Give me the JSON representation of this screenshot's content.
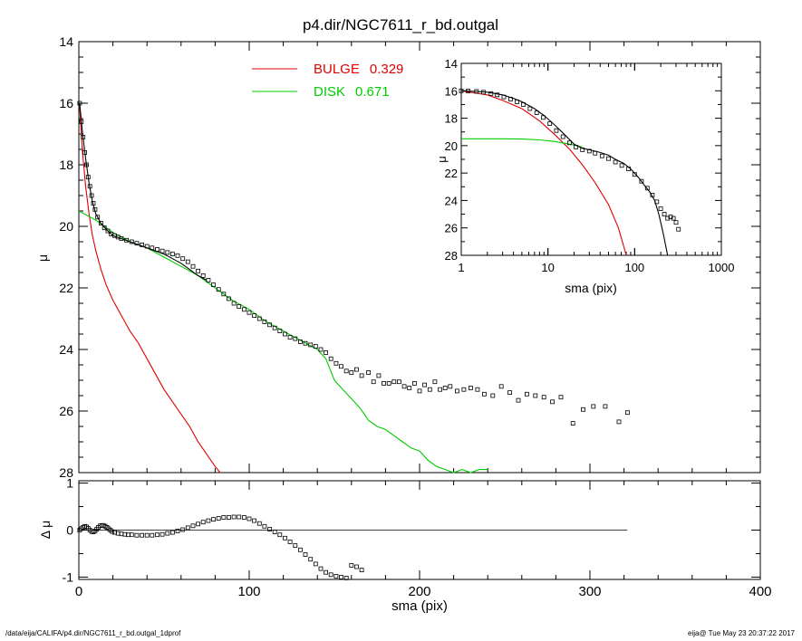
{
  "title": "p4.dir/NGC7611_r_bd.outgal",
  "footer": {
    "path": "/data/eija/CALIFA/p4.dir/NGC7611_r_bd.outgal_1dprof",
    "stamp": "eija@  Tue May 23 20:37:22 2017"
  },
  "colors": {
    "bulge": "#e00000",
    "disk": "#00cc00",
    "data": "#000000"
  },
  "chart_data": [
    {
      "id": "main",
      "type": "line",
      "xlabel": "",
      "ylabel": "μ",
      "xlim": [
        0,
        400
      ],
      "ylim": [
        28,
        14
      ],
      "yticks": [
        14,
        16,
        18,
        20,
        22,
        24,
        26,
        28
      ],
      "xticks": [
        0,
        100,
        200,
        300,
        400
      ],
      "legend": [
        {
          "label": "BULGE",
          "value": "0.329",
          "color": "#e00000"
        },
        {
          "label": "DISK",
          "value": "0.671",
          "color": "#00cc00"
        }
      ],
      "series": [
        {
          "role": "bulge",
          "style": "line",
          "color": "#e00000",
          "x": [
            0.5,
            2,
            4,
            6,
            8,
            10,
            13,
            16,
            20,
            25,
            30,
            35,
            40,
            45,
            50,
            55,
            60,
            65,
            70,
            75,
            80,
            83
          ],
          "y": [
            16.1,
            17.5,
            18.7,
            19.6,
            20.3,
            20.8,
            21.4,
            21.9,
            22.4,
            22.9,
            23.4,
            23.8,
            24.3,
            24.8,
            25.3,
            25.7,
            26.1,
            26.5,
            27.0,
            27.4,
            27.8,
            28.0
          ]
        },
        {
          "role": "disk",
          "style": "line",
          "color": "#00cc00",
          "x": [
            0,
            10,
            20,
            30,
            40,
            50,
            60,
            70,
            80,
            90,
            100,
            110,
            120,
            130,
            140,
            145,
            150,
            155,
            160,
            165,
            170,
            175,
            180,
            185,
            190,
            195,
            200,
            205,
            210,
            215,
            220,
            225,
            230,
            235,
            240
          ],
          "y": [
            19.5,
            19.8,
            20.2,
            20.5,
            20.7,
            21.0,
            21.3,
            21.6,
            22.0,
            22.4,
            22.7,
            23.1,
            23.4,
            23.7,
            24.0,
            24.3,
            25.0,
            25.3,
            25.6,
            25.9,
            26.3,
            26.5,
            26.6,
            26.8,
            27.0,
            27.2,
            27.3,
            27.6,
            27.8,
            27.9,
            28.0,
            27.9,
            28.0,
            27.9,
            27.9
          ]
        },
        {
          "role": "total",
          "style": "line",
          "color": "#000000",
          "x": [
            0.5,
            2,
            4,
            6,
            8,
            10,
            13,
            16,
            20,
            25,
            30,
            35,
            40,
            45,
            50,
            55,
            60,
            65,
            70,
            75
          ],
          "y": [
            16.0,
            16.9,
            17.8,
            18.6,
            19.2,
            19.6,
            19.9,
            20.1,
            20.3,
            20.4,
            20.5,
            20.6,
            20.7,
            20.8,
            20.9,
            21.05,
            21.2,
            21.4,
            21.6,
            21.75
          ]
        },
        {
          "role": "observed",
          "style": "markers",
          "color": "#000000",
          "x": [
            0.5,
            1.5,
            2.5,
            3.5,
            4.5,
            5.5,
            6.5,
            7.5,
            8.5,
            9.5,
            11,
            13,
            15,
            17,
            19,
            21,
            23,
            25,
            28,
            31,
            34,
            37,
            40,
            43,
            46,
            49,
            52,
            55,
            58,
            61,
            64,
            67,
            70,
            73,
            76,
            79,
            82,
            85,
            88,
            91,
            94,
            97,
            100,
            103,
            106,
            109,
            112,
            115,
            118,
            121,
            124,
            127,
            130,
            133,
            136,
            139,
            142,
            145,
            148,
            151,
            154,
            157,
            160,
            163,
            166,
            170,
            173,
            176,
            179,
            182,
            185,
            188,
            191,
            194,
            197,
            200,
            203,
            206,
            209,
            212,
            215,
            218,
            222,
            226,
            230,
            234,
            238,
            243,
            248,
            253,
            258,
            263,
            268,
            273,
            278,
            283,
            290,
            296,
            302,
            309,
            317,
            322
          ],
          "y": [
            16.0,
            16.6,
            17.1,
            17.6,
            18.0,
            18.4,
            18.7,
            19.0,
            19.25,
            19.45,
            19.7,
            19.9,
            20.05,
            20.15,
            20.25,
            20.3,
            20.35,
            20.4,
            20.45,
            20.5,
            20.55,
            20.6,
            20.65,
            20.7,
            20.75,
            20.8,
            20.85,
            20.9,
            20.95,
            21.05,
            21.15,
            21.3,
            21.45,
            21.6,
            21.75,
            21.9,
            22.05,
            22.2,
            22.35,
            22.5,
            22.6,
            22.7,
            22.8,
            22.9,
            23.0,
            23.1,
            23.2,
            23.3,
            23.4,
            23.5,
            23.6,
            23.65,
            23.75,
            23.8,
            23.85,
            23.9,
            24.0,
            24.1,
            24.3,
            24.45,
            24.55,
            24.7,
            24.75,
            24.65,
            24.85,
            24.75,
            25.05,
            24.85,
            25.1,
            25.1,
            25.05,
            25.05,
            25.2,
            25.25,
            25.1,
            25.35,
            25.15,
            25.3,
            25.05,
            25.3,
            25.25,
            25.2,
            25.35,
            25.3,
            25.25,
            25.3,
            25.45,
            25.5,
            25.2,
            25.4,
            25.65,
            25.45,
            25.5,
            25.55,
            25.7,
            25.55,
            26.4,
            25.95,
            25.85,
            25.85,
            26.35,
            26.05
          ]
        }
      ]
    },
    {
      "id": "residual",
      "type": "scatter",
      "xlabel": "sma (pix)",
      "ylabel": "Δ μ",
      "xlim": [
        0,
        400
      ],
      "ylim": [
        -1.05,
        1.05
      ],
      "yticks": [
        1,
        0,
        -1
      ],
      "xticks": [
        0,
        100,
        200,
        300,
        400
      ],
      "xtick_labels": [
        "0",
        "100",
        "200",
        "300",
        "400"
      ],
      "zero_line_range": [
        0,
        322
      ],
      "series": [
        {
          "role": "residual",
          "style": "markers",
          "color": "#000000",
          "x": [
            0.5,
            1.5,
            2.5,
            3.5,
            4.5,
            5.5,
            6.5,
            7.5,
            8.5,
            9.5,
            10.5,
            11.5,
            12.5,
            13.5,
            14.5,
            15.5,
            16.5,
            17.5,
            18.5,
            19.5,
            21,
            23,
            25,
            27,
            29,
            31,
            34,
            37,
            40,
            43,
            46,
            49,
            52,
            55,
            58,
            61,
            64,
            67,
            70,
            73,
            76,
            79,
            82,
            85,
            88,
            91,
            94,
            97,
            100,
            103,
            106,
            109,
            112,
            115,
            118,
            121,
            124,
            127,
            130,
            133,
            136,
            139,
            142,
            145,
            148,
            151,
            154,
            157,
            160,
            163,
            166
          ],
          "y": [
            0.0,
            0.03,
            0.06,
            0.08,
            0.07,
            0.04,
            0.0,
            -0.03,
            -0.04,
            -0.02,
            0.02,
            0.06,
            0.09,
            0.1,
            0.1,
            0.08,
            0.06,
            0.03,
            0.0,
            -0.03,
            -0.05,
            -0.07,
            -0.08,
            -0.09,
            -0.1,
            -0.1,
            -0.11,
            -0.11,
            -0.11,
            -0.11,
            -0.1,
            -0.09,
            -0.07,
            -0.05,
            -0.02,
            0.01,
            0.05,
            0.09,
            0.13,
            0.17,
            0.2,
            0.23,
            0.25,
            0.27,
            0.27,
            0.28,
            0.28,
            0.27,
            0.24,
            0.2,
            0.14,
            0.08,
            0.02,
            -0.04,
            -0.1,
            -0.17,
            -0.25,
            -0.33,
            -0.42,
            -0.52,
            -0.62,
            -0.72,
            -0.82,
            -0.9,
            -0.95,
            -0.98,
            -1.0,
            -1.02,
            -0.75,
            -0.78,
            -0.85
          ]
        }
      ]
    },
    {
      "id": "inset",
      "type": "line",
      "xlabel": "sma (pix)",
      "ylabel": "μ",
      "xscale": "log",
      "xlim": [
        1,
        1000
      ],
      "ylim": [
        28,
        14
      ],
      "yticks": [
        14,
        16,
        18,
        20,
        22,
        24,
        26,
        28
      ],
      "xticks": [
        1,
        10,
        100,
        1000
      ],
      "xtick_labels": [
        "1",
        "10",
        "100",
        "1000"
      ],
      "series": [
        {
          "role": "bulge",
          "style": "line",
          "color": "#e00000",
          "x": [
            1,
            2,
            3,
            5,
            8,
            12,
            18,
            25,
            35,
            50,
            65,
            80
          ],
          "y": [
            16.0,
            16.3,
            16.7,
            17.3,
            18.2,
            19.2,
            20.3,
            21.4,
            22.7,
            24.3,
            26.0,
            28.0
          ]
        },
        {
          "role": "disk",
          "style": "line",
          "color": "#00cc00",
          "x": [
            1,
            2,
            3,
            5,
            8,
            12,
            18,
            25
          ],
          "y": [
            19.5,
            19.5,
            19.5,
            19.52,
            19.58,
            19.7,
            19.9,
            20.1
          ]
        },
        {
          "role": "total",
          "style": "line",
          "color": "#000000",
          "x": [
            1,
            1.5,
            2,
            3,
            4,
            5,
            7,
            9,
            12,
            15,
            20,
            25,
            30,
            40,
            50,
            60,
            75,
            90,
            110,
            130,
            150,
            170,
            190,
            210,
            230,
            240
          ],
          "y": [
            16.0,
            16.05,
            16.1,
            16.3,
            16.55,
            16.8,
            17.3,
            17.8,
            18.5,
            19.1,
            19.9,
            20.2,
            20.3,
            20.5,
            20.7,
            21.0,
            21.3,
            21.7,
            22.3,
            22.9,
            23.4,
            24.0,
            25.0,
            26.2,
            27.4,
            28.0
          ]
        },
        {
          "role": "observed",
          "style": "markers",
          "color": "#000000",
          "x": [
            1,
            1.2,
            1.5,
            1.8,
            2.2,
            2.6,
            3.1,
            3.7,
            4.4,
            5.2,
            6.2,
            7.4,
            8.8,
            10.5,
            12.5,
            14.9,
            17.7,
            21,
            25,
            30,
            35,
            42,
            50,
            60,
            71,
            85,
            100,
            120,
            140,
            160,
            180,
            200,
            220,
            240,
            260,
            280,
            300,
            320
          ],
          "y": [
            16.0,
            16.02,
            16.05,
            16.1,
            16.2,
            16.3,
            16.45,
            16.6,
            16.8,
            17.0,
            17.3,
            17.6,
            17.95,
            18.4,
            18.9,
            19.35,
            19.8,
            20.1,
            20.3,
            20.4,
            20.55,
            20.75,
            20.95,
            21.2,
            21.45,
            21.7,
            22.1,
            22.6,
            23.1,
            23.6,
            24.1,
            24.6,
            25.0,
            25.3,
            25.2,
            25.3,
            25.6,
            26.1
          ]
        }
      ]
    }
  ]
}
